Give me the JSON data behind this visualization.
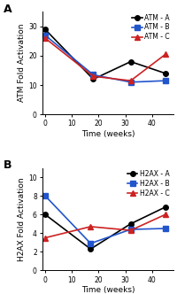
{
  "panel_A": {
    "title": "A",
    "xlabel": "Time (weeks)",
    "ylabel": "ATM Fold Activation",
    "ylim": [
      0,
      35
    ],
    "yticks": [
      0,
      10,
      20,
      30
    ],
    "xlim": [
      -1,
      48
    ],
    "xticks": [
      0,
      10,
      20,
      30,
      40
    ],
    "series": [
      {
        "label": "ATM - A",
        "color": "#000000",
        "marker": "o",
        "x": [
          0,
          18,
          32,
          45
        ],
        "y": [
          29,
          12,
          18,
          14
        ]
      },
      {
        "label": "ATM - B",
        "color": "#2255cc",
        "marker": "s",
        "x": [
          0,
          18,
          32,
          45
        ],
        "y": [
          27,
          13.5,
          11,
          11.5
        ]
      },
      {
        "label": "ATM - C",
        "color": "#cc2222",
        "marker": "^",
        "x": [
          0,
          18,
          32,
          45
        ],
        "y": [
          26,
          13,
          11.5,
          20.5
        ]
      }
    ]
  },
  "panel_B": {
    "title": "B",
    "xlabel": "Time (weeks)",
    "ylabel": "H2AX Fold Activation",
    "ylim": [
      0,
      11
    ],
    "yticks": [
      0,
      2,
      4,
      6,
      8,
      10
    ],
    "xlim": [
      -1,
      48
    ],
    "xticks": [
      0,
      10,
      20,
      30,
      40
    ],
    "series": [
      {
        "label": "H2AX - A",
        "color": "#000000",
        "marker": "o",
        "x": [
          0,
          17,
          32,
          45
        ],
        "y": [
          6.0,
          2.3,
          5.0,
          6.8
        ]
      },
      {
        "label": "H2AX - B",
        "color": "#2255cc",
        "marker": "s",
        "x": [
          0,
          17,
          32,
          45
        ],
        "y": [
          8.0,
          2.9,
          4.4,
          4.5
        ]
      },
      {
        "label": "H2AX - C",
        "color": "#cc2222",
        "marker": "^",
        "x": [
          0,
          17,
          32,
          45
        ],
        "y": [
          3.5,
          4.7,
          4.3,
          6.0
        ]
      }
    ]
  },
  "background_color": "#ffffff",
  "linewidth": 1.2,
  "markersize": 4,
  "legend_fontsize": 5.5,
  "axis_label_fontsize": 6.5,
  "tick_fontsize": 5.5,
  "panel_label_fontsize": 9
}
